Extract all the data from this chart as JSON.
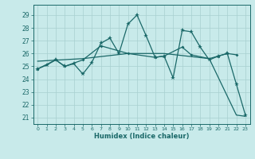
{
  "title": "",
  "xlabel": "Humidex (Indice chaleur)",
  "bg_color": "#c8eaea",
  "grid_color": "#a8d0d0",
  "line_color": "#1a6868",
  "xlim": [
    -0.5,
    23.5
  ],
  "ylim": [
    20.5,
    29.8
  ],
  "yticks": [
    21,
    22,
    23,
    24,
    25,
    26,
    27,
    28,
    29
  ],
  "xticks": [
    0,
    1,
    2,
    3,
    4,
    5,
    6,
    7,
    8,
    9,
    10,
    11,
    12,
    13,
    14,
    15,
    16,
    17,
    18,
    19,
    20,
    21,
    22,
    23
  ],
  "zigzag_x": [
    0,
    1,
    2,
    3,
    4,
    5,
    6,
    7,
    8,
    9,
    10,
    11,
    12,
    13,
    14,
    15,
    16,
    17,
    18,
    19,
    20,
    21,
    22,
    23
  ],
  "zigzag_y": [
    24.8,
    25.1,
    25.5,
    25.0,
    25.2,
    24.4,
    25.3,
    26.8,
    27.2,
    26.0,
    28.3,
    29.0,
    27.4,
    25.7,
    25.8,
    24.1,
    27.8,
    27.7,
    26.5,
    25.5,
    25.8,
    26.0,
    23.6,
    21.2
  ],
  "smooth_x": [
    0,
    2,
    3,
    5,
    7,
    10,
    13,
    14,
    16,
    17,
    19,
    20,
    21,
    22
  ],
  "smooth_y": [
    24.8,
    25.5,
    25.0,
    25.5,
    26.6,
    26.0,
    25.7,
    25.8,
    26.5,
    25.9,
    25.6,
    25.8,
    26.0,
    25.9
  ],
  "trend_x": [
    0,
    5,
    10,
    14,
    19,
    22,
    23
  ],
  "trend_y": [
    25.4,
    25.6,
    26.0,
    26.0,
    25.6,
    21.2,
    21.1
  ]
}
